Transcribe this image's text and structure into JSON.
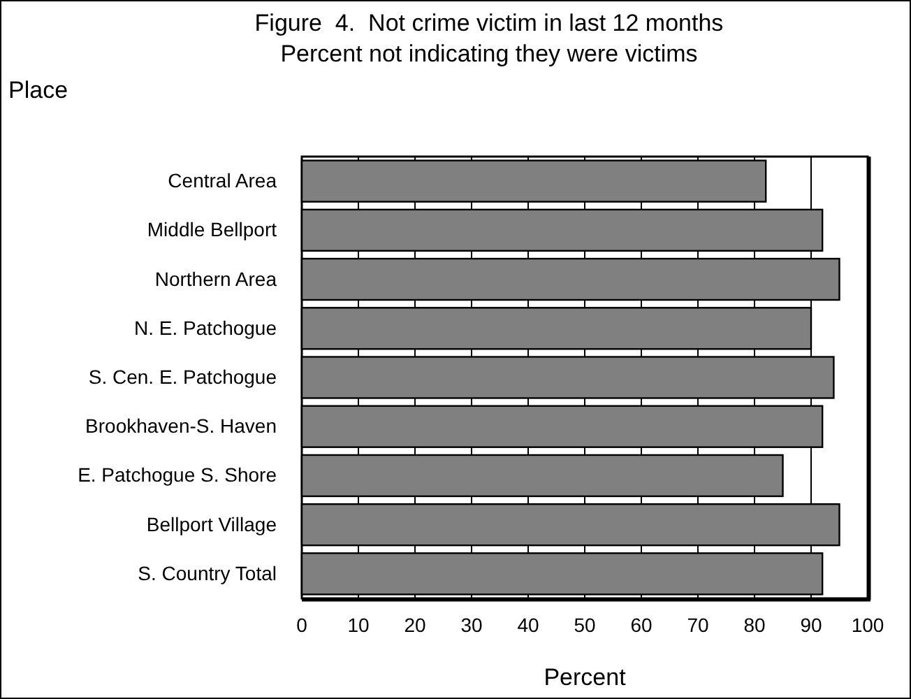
{
  "chart_data": {
    "type": "bar",
    "orientation": "horizontal",
    "title": "Figure  4.  Not crime victim in last 12 months",
    "subtitle": "Percent not indicating they were victims",
    "ylabel": "Place",
    "xlabel": "Percent",
    "categories": [
      "Central Area",
      "Middle Bellport",
      "Northern Area",
      "N. E. Patchogue",
      "S. Cen. E. Patchogue",
      "Brookhaven-S. Haven",
      "E. Patchogue S. Shore",
      "Bellport Village",
      "S. Country Total"
    ],
    "values": [
      82,
      92,
      95,
      90,
      94,
      92,
      85,
      95,
      92
    ],
    "color": "#808080",
    "xlim": [
      0,
      100
    ],
    "xticks": [
      0,
      10,
      20,
      30,
      40,
      50,
      60,
      70,
      80,
      90,
      100
    ],
    "grid": "x"
  }
}
